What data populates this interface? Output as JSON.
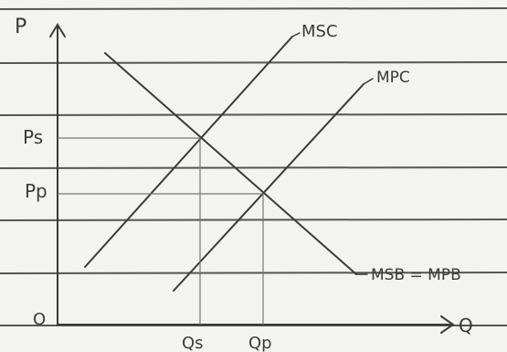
{
  "diagram": {
    "axis_labels": {
      "y": "P",
      "x": "Q",
      "origin": "O"
    },
    "curves": {
      "msc": "MSC",
      "mpc": "MPC",
      "demand": "MSB = MPB"
    },
    "price_labels": {
      "social": "Ps",
      "private": "Pp"
    },
    "quantity_labels": {
      "social": "Qs",
      "private": "Qp"
    },
    "colors": {
      "ink": "#3a3a3a",
      "paper": "#f3f3f1",
      "ruled_line": "#555555"
    }
  }
}
